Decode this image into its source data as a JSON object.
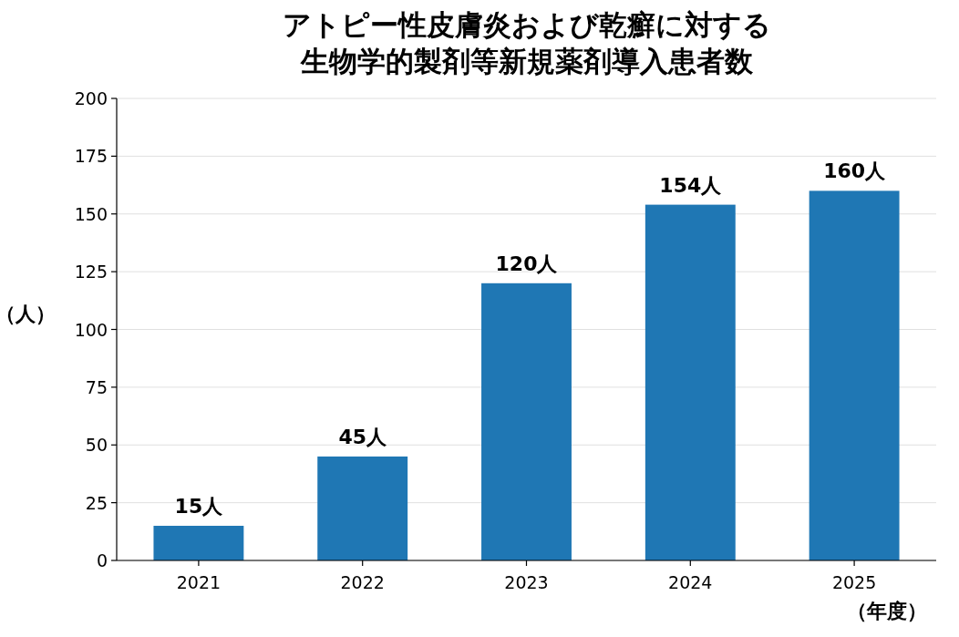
{
  "chart_data": {
    "type": "bar",
    "title": "アトピー性皮膚炎および乾癬に対する生物学的製剤等新規薬剤導入患者数",
    "xlabel": "（年度）",
    "ylabel": "（人）",
    "categories": [
      "2021",
      "2022",
      "2023",
      "2024",
      "2025"
    ],
    "values": [
      15,
      45,
      120,
      154,
      160
    ],
    "value_labels": [
      "15人",
      "45人",
      "120人",
      "154人",
      "160人"
    ],
    "color": "#1f77b4",
    "ylim": [
      0,
      200
    ],
    "yticks": [
      0,
      25,
      50,
      75,
      100,
      125,
      150,
      175,
      200
    ],
    "grid": "y"
  }
}
